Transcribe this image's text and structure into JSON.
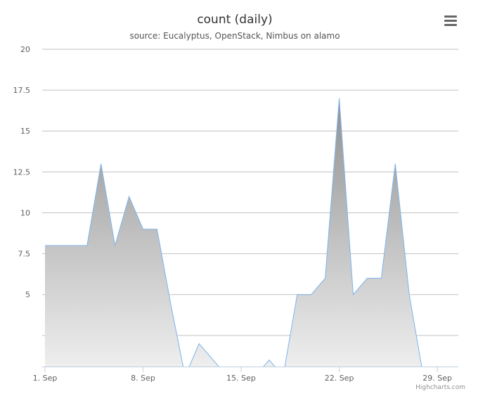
{
  "chart_data": {
    "type": "area",
    "title": "count (daily)",
    "subtitle": "source: Eucalyptus, OpenStack, Nimbus on alamo",
    "credits": "Highcharts.com",
    "x": [
      1,
      2,
      3,
      4,
      5,
      6,
      7,
      8,
      9,
      10,
      11,
      12,
      13,
      14,
      15,
      16,
      17,
      18,
      19,
      20,
      21,
      22,
      23,
      24,
      25,
      26,
      27,
      28,
      29,
      30
    ],
    "series": [
      {
        "name": "count",
        "color": "#7cb5ec",
        "values": [
          8,
          8,
          8,
          8,
          13,
          8,
          11,
          9,
          9,
          4.3,
          0,
          2,
          1,
          0,
          0,
          0,
          1,
          0,
          5,
          5,
          6,
          17,
          5,
          6,
          6,
          13,
          5,
          0,
          0,
          0
        ]
      }
    ],
    "xlim": [
      0.8,
      30.5
    ],
    "xticks": [
      {
        "value": 1,
        "label": "1. Sep"
      },
      {
        "value": 8,
        "label": "8. Sep"
      },
      {
        "value": 15,
        "label": "15. Sep"
      },
      {
        "value": 22,
        "label": "22. Sep"
      },
      {
        "value": 29,
        "label": "29. Sep"
      }
    ],
    "ylim": [
      0.6,
      20
    ],
    "yticks": [
      5,
      7.5,
      10,
      12.5,
      15,
      17.5,
      20
    ],
    "ygrid": [
      2.5
    ],
    "grid": true
  }
}
